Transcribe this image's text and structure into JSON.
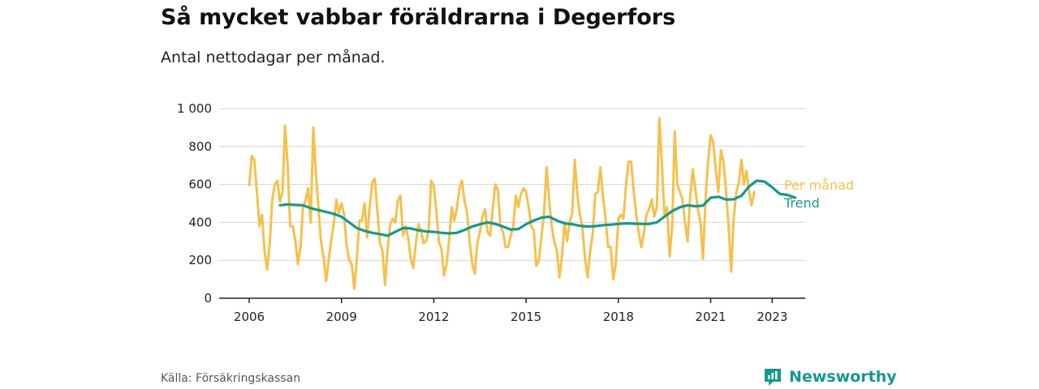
{
  "title": "Så mycket vabbar föräldrarna i Degerfors",
  "subtitle": "Antal nettodagar per månad.",
  "source": "Källa: Försäkringskassan",
  "brand": "Newsworthy",
  "colors": {
    "monthly": "#f7c04a",
    "trend": "#139a8e",
    "grid": "#d4d4d4",
    "axis": "#222222"
  },
  "chart_data": {
    "type": "line",
    "title": "Så mycket vabbar föräldrarna i Degerfors",
    "subtitle": "Antal nettodagar per månad.",
    "ylim": [
      0,
      1000
    ],
    "yticks": [
      0,
      200,
      400,
      600,
      800,
      1000
    ],
    "ytick_labels": [
      "0",
      "200",
      "400",
      "600",
      "800",
      "1 000"
    ],
    "xlim": [
      2006,
      2023.75
    ],
    "xticks": [
      2006,
      2009,
      2012,
      2015,
      2018,
      2021,
      2023
    ],
    "xtick_labels": [
      "2006",
      "2009",
      "2012",
      "2015",
      "2018",
      "2021",
      "2023"
    ],
    "grid": true,
    "legend": "direct labels at right end of lines",
    "series": [
      {
        "name": "Per månad",
        "color": "#f7c04a",
        "start": "2006-01",
        "values": [
          595,
          750,
          730,
          560,
          380,
          440,
          250,
          150,
          290,
          520,
          600,
          620,
          510,
          560,
          910,
          700,
          380,
          380,
          300,
          180,
          270,
          480,
          520,
          580,
          400,
          900,
          660,
          480,
          300,
          220,
          90,
          200,
          310,
          390,
          520,
          450,
          500,
          440,
          280,
          200,
          180,
          50,
          210,
          410,
          410,
          500,
          320,
          480,
          610,
          630,
          460,
          290,
          250,
          70,
          260,
          390,
          420,
          400,
          520,
          540,
          330,
          380,
          320,
          210,
          160,
          290,
          390,
          360,
          290,
          300,
          360,
          620,
          590,
          460,
          300,
          260,
          120,
          180,
          310,
          480,
          410,
          470,
          580,
          620,
          510,
          450,
          300,
          180,
          130,
          290,
          350,
          430,
          470,
          350,
          330,
          470,
          600,
          570,
          380,
          350,
          270,
          270,
          330,
          380,
          540,
          480,
          550,
          580,
          560,
          480,
          380,
          360,
          170,
          200,
          320,
          450,
          690,
          520,
          380,
          300,
          250,
          110,
          220,
          400,
          300,
          400,
          450,
          730,
          550,
          440,
          370,
          210,
          110,
          250,
          340,
          550,
          560,
          690,
          540,
          420,
          270,
          270,
          100,
          180,
          420,
          440,
          420,
          600,
          720,
          720,
          560,
          440,
          340,
          270,
          350,
          440,
          470,
          520,
          430,
          480,
          950,
          700,
          440,
          480,
          220,
          380,
          880,
          600,
          560,
          520,
          400,
          300,
          530,
          680,
          580,
          470,
          400,
          210,
          520,
          720,
          860,
          820,
          680,
          560,
          780,
          720,
          570,
          380,
          140,
          420,
          560,
          610,
          730,
          600,
          670,
          560,
          490,
          560
        ]
      },
      {
        "name": "Trend",
        "color": "#139a8e",
        "points": [
          [
            2007.0,
            490
          ],
          [
            2007.25,
            495
          ],
          [
            2007.5,
            492
          ],
          [
            2007.75,
            490
          ],
          [
            2008.0,
            475
          ],
          [
            2008.25,
            465
          ],
          [
            2008.5,
            455
          ],
          [
            2008.75,
            445
          ],
          [
            2009.0,
            430
          ],
          [
            2009.25,
            400
          ],
          [
            2009.5,
            370
          ],
          [
            2009.75,
            355
          ],
          [
            2010.0,
            345
          ],
          [
            2010.25,
            338
          ],
          [
            2010.5,
            330
          ],
          [
            2010.75,
            350
          ],
          [
            2011.0,
            370
          ],
          [
            2011.25,
            368
          ],
          [
            2011.5,
            358
          ],
          [
            2011.75,
            352
          ],
          [
            2012.0,
            350
          ],
          [
            2012.25,
            345
          ],
          [
            2012.5,
            342
          ],
          [
            2012.75,
            345
          ],
          [
            2013.0,
            360
          ],
          [
            2013.25,
            378
          ],
          [
            2013.5,
            390
          ],
          [
            2013.75,
            400
          ],
          [
            2014.0,
            392
          ],
          [
            2014.25,
            378
          ],
          [
            2014.5,
            362
          ],
          [
            2014.75,
            365
          ],
          [
            2015.0,
            390
          ],
          [
            2015.25,
            410
          ],
          [
            2015.5,
            425
          ],
          [
            2015.75,
            430
          ],
          [
            2016.0,
            410
          ],
          [
            2016.25,
            395
          ],
          [
            2016.5,
            390
          ],
          [
            2016.75,
            382
          ],
          [
            2017.0,
            378
          ],
          [
            2017.25,
            380
          ],
          [
            2017.5,
            385
          ],
          [
            2017.75,
            388
          ],
          [
            2018.0,
            392
          ],
          [
            2018.25,
            395
          ],
          [
            2018.5,
            393
          ],
          [
            2018.75,
            392
          ],
          [
            2019.0,
            392
          ],
          [
            2019.25,
            400
          ],
          [
            2019.5,
            430
          ],
          [
            2019.75,
            460
          ],
          [
            2020.0,
            480
          ],
          [
            2020.25,
            490
          ],
          [
            2020.5,
            485
          ],
          [
            2020.75,
            488
          ],
          [
            2021.0,
            530
          ],
          [
            2021.25,
            535
          ],
          [
            2021.5,
            520
          ],
          [
            2021.75,
            522
          ],
          [
            2022.0,
            540
          ],
          [
            2022.25,
            590
          ],
          [
            2022.5,
            620
          ],
          [
            2022.75,
            615
          ],
          [
            2023.0,
            585
          ],
          [
            2023.25,
            550
          ],
          [
            2023.5,
            545
          ],
          [
            2023.75,
            530
          ]
        ]
      }
    ]
  }
}
